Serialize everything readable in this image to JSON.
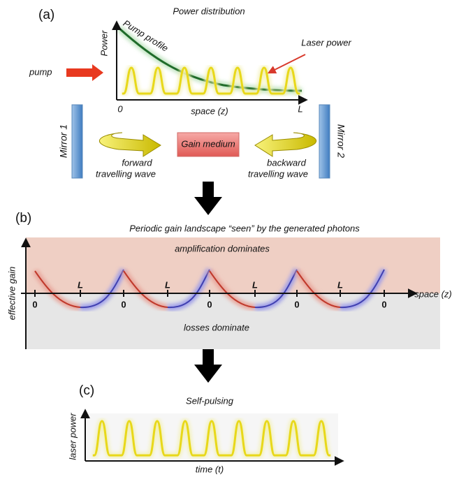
{
  "panel_a": {
    "label": "(a)",
    "title": "Power distribution",
    "y_label": "Power",
    "pump_curve_label": "Pump profile",
    "laser_label": "Laser power",
    "pump_label": "pump",
    "x_start": "0",
    "x_label": "space (z)",
    "x_end": "L",
    "mirror_1": "Mirror  1",
    "mirror_2": "Mirror 2",
    "gain_medium": "Gain medium",
    "forward_wave": [
      "forward",
      "travelling wave"
    ],
    "backward_wave": [
      "backward",
      "travelling wave"
    ]
  },
  "panel_b": {
    "label": "(b)",
    "title": "Periodic gain landscape “seen” by the generated photons",
    "upper_region": "amplification dominates",
    "lower_region": "losses dominate",
    "y_label": "effective gain",
    "x_label": "space (z)",
    "zero_labels": [
      "0",
      "0",
      "0",
      "0",
      "0"
    ],
    "l_labels": [
      "L",
      "L",
      "L",
      "L"
    ]
  },
  "panel_c": {
    "label": "(c)",
    "title": "Self-pulsing",
    "y_label": "laser power",
    "x_label": "time (t)"
  }
}
